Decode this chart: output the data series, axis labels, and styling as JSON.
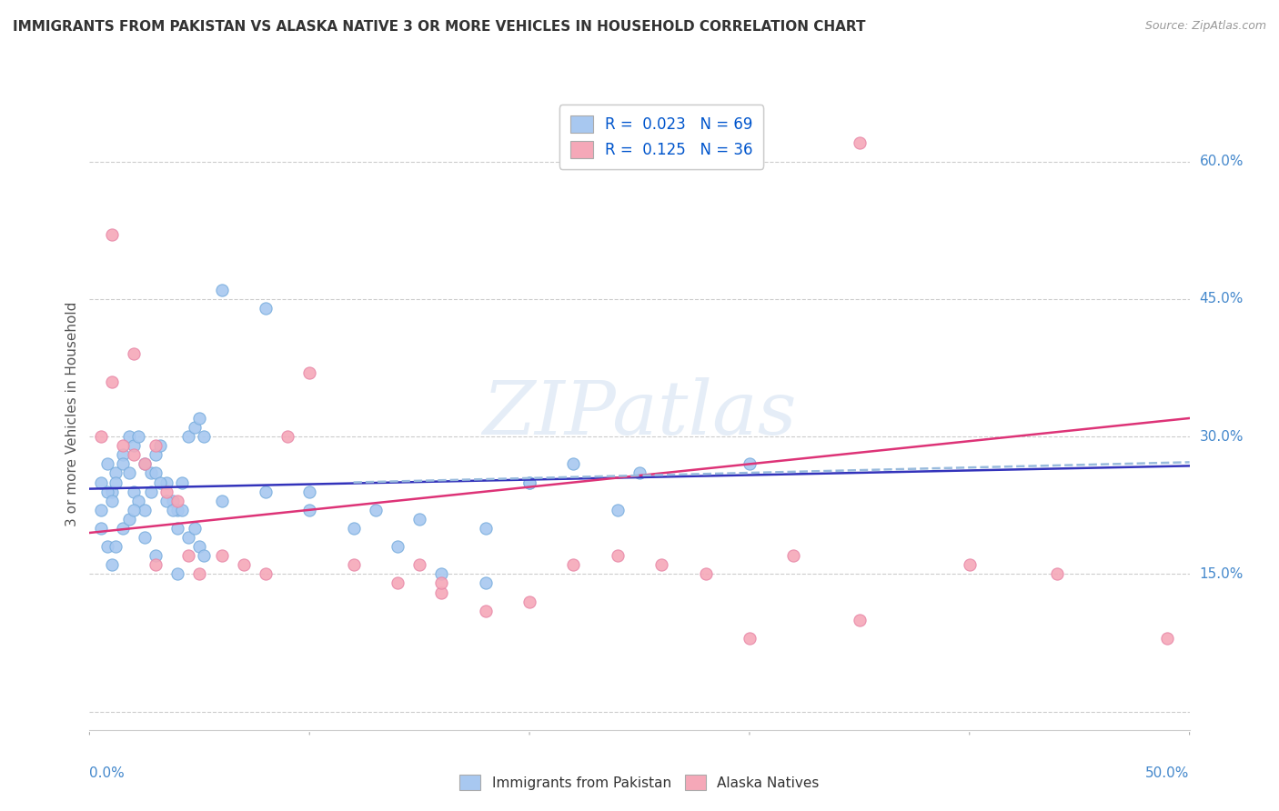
{
  "title": "IMMIGRANTS FROM PAKISTAN VS ALASKA NATIVE 3 OR MORE VEHICLES IN HOUSEHOLD CORRELATION CHART",
  "source": "Source: ZipAtlas.com",
  "ylabel": "3 or more Vehicles in Household",
  "ytick_vals": [
    0.0,
    0.15,
    0.3,
    0.45,
    0.6
  ],
  "ytick_labels": [
    "",
    "15.0%",
    "30.0%",
    "45.0%",
    "60.0%"
  ],
  "xlim": [
    0.0,
    0.5
  ],
  "ylim": [
    -0.02,
    0.67
  ],
  "legend_R1": "0.023",
  "legend_N1": "69",
  "legend_R2": "0.125",
  "legend_N2": "36",
  "blue_color": "#a8c8f0",
  "pink_color": "#f5a8b8",
  "blue_edge_color": "#7aaede",
  "pink_edge_color": "#e888a8",
  "blue_line_color": "#3333bb",
  "pink_line_color": "#dd3377",
  "dashed_line_color": "#99bbdd",
  "watermark_text": "ZIPatlas",
  "blue_scatter_x": [
    0.005,
    0.008,
    0.01,
    0.012,
    0.015,
    0.018,
    0.02,
    0.022,
    0.025,
    0.028,
    0.03,
    0.032,
    0.035,
    0.038,
    0.04,
    0.042,
    0.045,
    0.048,
    0.05,
    0.052,
    0.005,
    0.008,
    0.01,
    0.012,
    0.015,
    0.018,
    0.02,
    0.022,
    0.025,
    0.028,
    0.03,
    0.032,
    0.035,
    0.038,
    0.04,
    0.042,
    0.045,
    0.048,
    0.05,
    0.052,
    0.005,
    0.008,
    0.01,
    0.012,
    0.015,
    0.018,
    0.02,
    0.025,
    0.03,
    0.04,
    0.06,
    0.08,
    0.1,
    0.12,
    0.14,
    0.16,
    0.18,
    0.2,
    0.22,
    0.24,
    0.06,
    0.08,
    0.1,
    0.13,
    0.15,
    0.18,
    0.2,
    0.25,
    0.3
  ],
  "blue_scatter_y": [
    0.25,
    0.27,
    0.24,
    0.26,
    0.28,
    0.3,
    0.29,
    0.3,
    0.27,
    0.26,
    0.28,
    0.29,
    0.25,
    0.23,
    0.22,
    0.25,
    0.3,
    0.31,
    0.32,
    0.3,
    0.22,
    0.24,
    0.23,
    0.25,
    0.27,
    0.26,
    0.24,
    0.23,
    0.22,
    0.24,
    0.26,
    0.25,
    0.23,
    0.22,
    0.2,
    0.22,
    0.19,
    0.2,
    0.18,
    0.17,
    0.2,
    0.18,
    0.16,
    0.18,
    0.2,
    0.21,
    0.22,
    0.19,
    0.17,
    0.15,
    0.23,
    0.24,
    0.22,
    0.2,
    0.18,
    0.15,
    0.14,
    0.25,
    0.27,
    0.22,
    0.46,
    0.44,
    0.24,
    0.22,
    0.21,
    0.2,
    0.25,
    0.26,
    0.27
  ],
  "pink_scatter_x": [
    0.005,
    0.01,
    0.015,
    0.02,
    0.025,
    0.03,
    0.035,
    0.04,
    0.045,
    0.05,
    0.06,
    0.07,
    0.08,
    0.09,
    0.1,
    0.12,
    0.14,
    0.16,
    0.18,
    0.2,
    0.22,
    0.24,
    0.26,
    0.28,
    0.3,
    0.32,
    0.35,
    0.01,
    0.02,
    0.03,
    0.15,
    0.16,
    0.35,
    0.4,
    0.44,
    0.49
  ],
  "pink_scatter_y": [
    0.3,
    0.36,
    0.29,
    0.28,
    0.27,
    0.29,
    0.24,
    0.23,
    0.17,
    0.15,
    0.17,
    0.16,
    0.15,
    0.3,
    0.37,
    0.16,
    0.14,
    0.13,
    0.11,
    0.12,
    0.16,
    0.17,
    0.16,
    0.15,
    0.08,
    0.17,
    0.1,
    0.52,
    0.39,
    0.16,
    0.16,
    0.14,
    0.62,
    0.16,
    0.15,
    0.08
  ],
  "blue_trend_x": [
    0.0,
    0.5
  ],
  "blue_trend_y": [
    0.243,
    0.268
  ],
  "pink_trend_x": [
    0.0,
    0.5
  ],
  "pink_trend_y": [
    0.195,
    0.32
  ],
  "dashed_trend_x": [
    0.12,
    0.5
  ],
  "dashed_trend_y": [
    0.25,
    0.272
  ]
}
